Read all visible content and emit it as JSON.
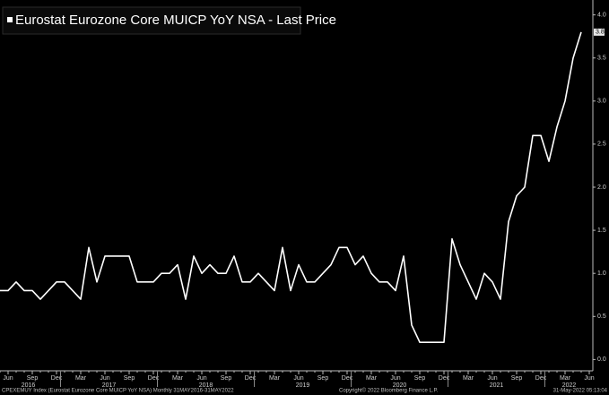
{
  "chart_data": {
    "type": "line",
    "title": "Eurostat Eurozone Core MUICP YoY NSA - Last Price",
    "color": "#ffffff",
    "categories": [
      null,
      "Jun",
      null,
      null,
      "Sep",
      null,
      null,
      "Dec",
      null,
      null,
      "Mar",
      null,
      null,
      "Jun",
      null,
      null,
      "Sep",
      null,
      null,
      "Dec",
      null,
      null,
      "Mar",
      null,
      null,
      "Jun",
      null,
      null,
      "Sep",
      null,
      null,
      "Dec",
      null,
      null,
      "Mar",
      null,
      null,
      "Jun",
      null,
      null,
      "Sep",
      null,
      null,
      "Dec",
      null,
      null,
      "Mar",
      null,
      null,
      "Jun",
      null,
      null,
      "Sep",
      null,
      null,
      "Dec",
      null,
      null,
      "Mar",
      null,
      null,
      "Jun",
      null,
      null,
      "Sep",
      null,
      null,
      "Dec",
      null,
      null,
      "Mar",
      null,
      null,
      "Jun"
    ],
    "x_groups": [
      {
        "label": "2016",
        "span": 8
      },
      {
        "label": "2017",
        "span": 12
      },
      {
        "label": "2018",
        "span": 12
      },
      {
        "label": "2019",
        "span": 12
      },
      {
        "label": "2020",
        "span": 12
      },
      {
        "label": "2021",
        "span": 12
      },
      {
        "label": "2022",
        "span": 6
      }
    ],
    "values": [
      0.8,
      0.8,
      0.9,
      0.8,
      0.8,
      0.7,
      0.8,
      0.9,
      0.9,
      0.8,
      0.7,
      1.3,
      0.9,
      1.2,
      1.2,
      1.2,
      1.2,
      0.9,
      0.9,
      0.9,
      1.0,
      1.0,
      1.1,
      0.7,
      1.2,
      1.0,
      1.1,
      1.0,
      1.0,
      1.2,
      0.9,
      0.9,
      1.0,
      0.9,
      0.8,
      1.3,
      0.8,
      1.1,
      0.9,
      0.9,
      1.0,
      1.1,
      1.3,
      1.3,
      1.1,
      1.2,
      1.0,
      0.9,
      0.9,
      0.8,
      1.2,
      0.4,
      0.2,
      0.2,
      0.2,
      0.2,
      1.4,
      1.1,
      0.9,
      0.7,
      1.0,
      0.9,
      0.7,
      1.6,
      1.9,
      2.0,
      2.6,
      2.6,
      2.3,
      2.7,
      3.0,
      3.5,
      3.8,
      null
    ],
    "ylim": [
      -0.1,
      4.1
    ],
    "yticks": [
      {
        "value": 0,
        "label": "0.0"
      },
      {
        "value": 0.5,
        "label": "0.5"
      },
      {
        "value": 1,
        "label": "1.0"
      },
      {
        "value": 1.5,
        "label": "1.5"
      },
      {
        "value": 2,
        "label": "2.0"
      },
      {
        "value": 2.5,
        "label": "2.5"
      },
      {
        "value": 3,
        "label": "3.0"
      },
      {
        "value": 3.5,
        "label": "3.5"
      },
      {
        "value": 4,
        "label": "4.0"
      }
    ]
  },
  "footer": {
    "left": "CPEXEMUY Index (Eurostat Eurozone Core MUICP YoY NSA)  Monthly 31MAY2016-31MAY2022",
    "center": "Copyright© 2022 Bloomberg Finance L.P.",
    "right": "31-May-2022 05:13:04"
  }
}
